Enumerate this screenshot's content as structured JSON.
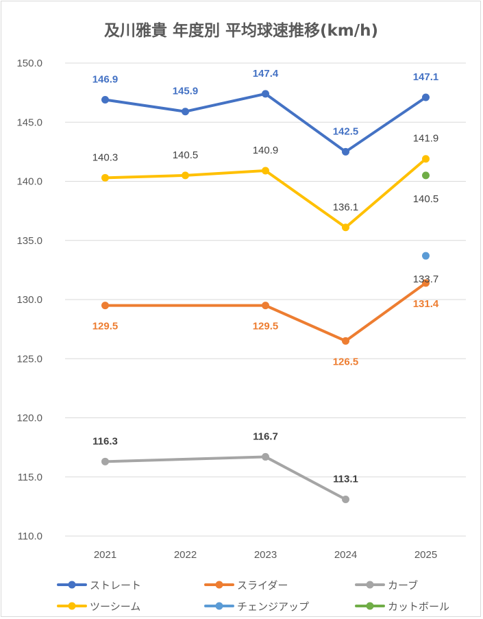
{
  "chart_data": {
    "type": "line",
    "title": "及川雅貴 年度別 平均球速推移(km/h)",
    "categories": [
      "2021",
      "2022",
      "2023",
      "2024",
      "2025"
    ],
    "ylim": [
      110,
      150
    ],
    "yticks": [
      "110.0",
      "115.0",
      "120.0",
      "125.0",
      "130.0",
      "135.0",
      "140.0",
      "145.0",
      "150.0"
    ],
    "grid": true,
    "legend_position": "bottom",
    "series": [
      {
        "name": "ストレート",
        "color": "#4472c4",
        "label_color": "#4472c4",
        "label_bold": false,
        "values": [
          146.9,
          145.9,
          147.4,
          142.5,
          147.1
        ],
        "labels": [
          "146.9",
          "145.9",
          "147.4",
          "142.5",
          "147.1"
        ]
      },
      {
        "name": "スライダー",
        "color": "#ed7d31",
        "label_color": "#ed7d31",
        "label_bold": false,
        "values": [
          129.5,
          null,
          129.5,
          126.5,
          131.4
        ],
        "labels": [
          "129.5",
          "",
          "129.5",
          "126.5",
          "131.4"
        ]
      },
      {
        "name": "カーブ",
        "color": "#a5a5a5",
        "label_color": "#404040",
        "label_bold": true,
        "values": [
          116.3,
          null,
          116.7,
          113.1,
          null
        ],
        "labels": [
          "116.3",
          "",
          "116.7",
          "113.1",
          ""
        ]
      },
      {
        "name": "ツーシーム",
        "color": "#ffc000",
        "label_color": "#404040",
        "label_bold": false,
        "values": [
          140.3,
          140.5,
          140.9,
          136.1,
          141.9
        ],
        "labels": [
          "140.3",
          "140.5",
          "140.9",
          "136.1",
          "141.9"
        ]
      },
      {
        "name": "チェンジアップ",
        "color": "#5b9bd5",
        "label_color": "#404040",
        "label_bold": false,
        "values": [
          null,
          null,
          null,
          null,
          133.7
        ],
        "labels": [
          "",
          "",
          "",
          "",
          "133.7"
        ]
      },
      {
        "name": "カットボール",
        "color": "#70ad47",
        "label_color": "#404040",
        "label_bold": false,
        "values": [
          null,
          null,
          null,
          null,
          140.5
        ],
        "labels": [
          "",
          "",
          "",
          "",
          "140.5"
        ]
      }
    ]
  }
}
